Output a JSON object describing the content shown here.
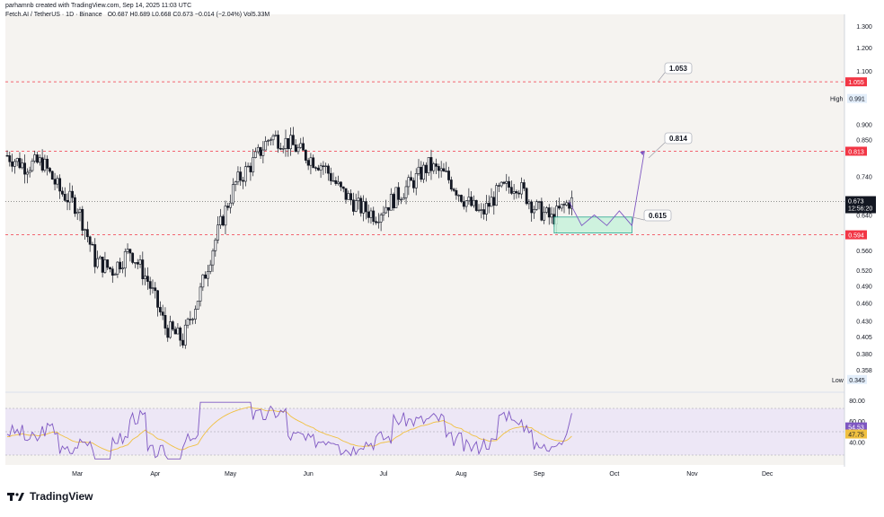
{
  "header": {
    "credit": "parhamnb created with TradingView.com, Sep 14, 2025 11:03 UTC",
    "symbol": "Fetch.AI / TetherUS · 1D · Binance",
    "ohlc": "O0.687 H0.689 L0.668 C0.673 −0.014 (−2.04%) Vol5.33M"
  },
  "price_axis": {
    "ticks": [
      "1.300",
      "1.200",
      "1.100",
      "0.991",
      "0.900",
      "0.850",
      "0.813",
      "0.740",
      "0.673",
      "0.640",
      "0.594",
      "0.560",
      "0.520",
      "0.490",
      "0.460",
      "0.430",
      "0.405",
      "0.380",
      "0.358",
      "0.345"
    ],
    "hidden_ticks": [
      "1.055",
      "0.800",
      "0.700",
      "0.600"
    ],
    "labels": {
      "high_label": "High",
      "high_value": "0.991",
      "low_label": "Low",
      "low_value": "0.345",
      "last_price": "0.673",
      "countdown": "12:56:20",
      "level_top": "1.055",
      "level_mid": "0.813",
      "level_low": "0.594"
    }
  },
  "rsi_axis": {
    "ticks": [
      "80.00",
      "60.00",
      "40.00"
    ],
    "rsi_value": "54.53",
    "rsi_ma_value": "47.75"
  },
  "time_axis": [
    "Mar",
    "Apr",
    "May",
    "Jun",
    "Jul",
    "Aug",
    "Sep",
    "Oct",
    "Nov",
    "Dec"
  ],
  "annotations": {
    "target_1": "1.053",
    "target_2": "0.814",
    "support": "0.615"
  },
  "footer": {
    "brand": "TradingView"
  },
  "colors": {
    "candle": "#131722",
    "level_line": "#f23645",
    "projection": "#7e57c2",
    "zone_fill": "#c8f2dc",
    "zone_border": "#089981",
    "rsi_line": "#7e57c2",
    "rsi_ma": "#f0c040",
    "rsi_band": "#ede7f6",
    "plot_bg": "#f5f3f0"
  },
  "chart_data": {
    "type": "candlestick",
    "symbol": "FET/USDT",
    "timeframe": "1D",
    "scale": "log",
    "x": [
      "2025-02-01",
      "2025-02-08",
      "2025-02-15",
      "2025-02-22",
      "2025-03-01",
      "2025-03-08",
      "2025-03-15",
      "2025-03-22",
      "2025-03-29",
      "2025-04-05",
      "2025-04-12",
      "2025-04-19",
      "2025-04-26",
      "2025-05-03",
      "2025-05-10",
      "2025-05-17",
      "2025-05-24",
      "2025-05-31",
      "2025-06-07",
      "2025-06-14",
      "2025-06-21",
      "2025-06-28",
      "2025-07-05",
      "2025-07-12",
      "2025-07-19",
      "2025-07-26",
      "2025-08-02",
      "2025-08-09",
      "2025-08-16",
      "2025-08-23",
      "2025-08-30",
      "2025-09-06",
      "2025-09-13"
    ],
    "close": [
      0.8,
      0.77,
      0.78,
      0.7,
      0.66,
      0.54,
      0.52,
      0.56,
      0.5,
      0.42,
      0.4,
      0.48,
      0.6,
      0.72,
      0.78,
      0.86,
      0.84,
      0.8,
      0.77,
      0.7,
      0.66,
      0.64,
      0.68,
      0.72,
      0.77,
      0.74,
      0.68,
      0.64,
      0.7,
      0.72,
      0.66,
      0.63,
      0.673
    ],
    "ylim": [
      0.33,
      1.35
    ],
    "horizontal_levels": [
      1.055,
      0.813,
      0.594
    ],
    "projection_path": [
      0.673,
      0.615,
      0.64,
      0.615,
      0.65,
      0.615,
      0.814
    ],
    "zone": [
      0.598,
      0.635
    ],
    "rsi": {
      "last": 54.53,
      "ma": 47.75,
      "bands": [
        70,
        30
      ],
      "ylim": [
        20,
        85
      ]
    }
  }
}
